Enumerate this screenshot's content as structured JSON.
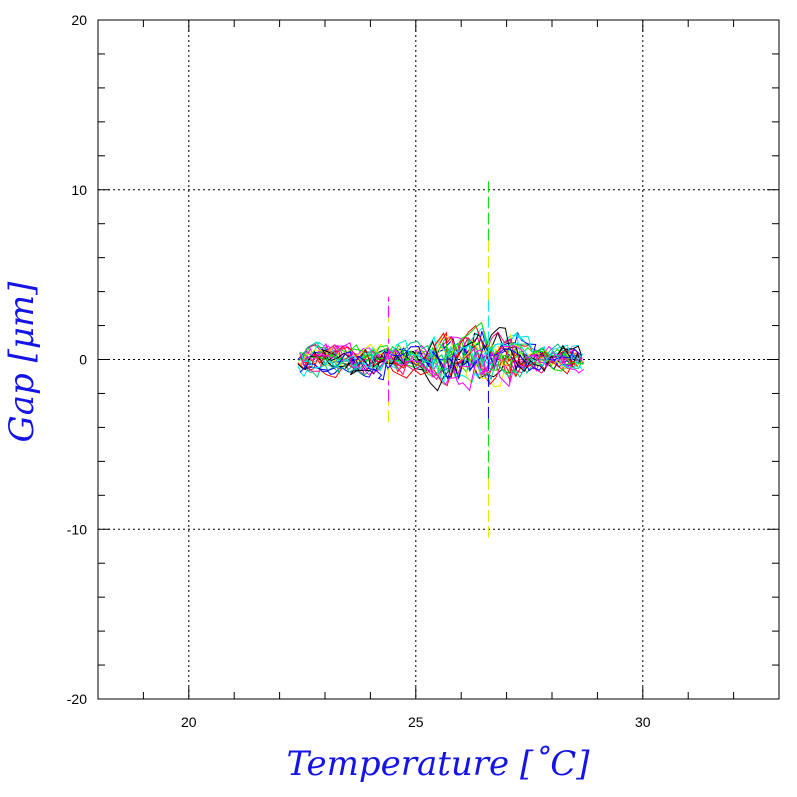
{
  "chart_data": {
    "type": "line",
    "title": "",
    "xlabel": "Temperature [˚C]",
    "ylabel": "Gap [μm]",
    "xlim": [
      18,
      33
    ],
    "ylim": [
      -20,
      20
    ],
    "x_ticks": [
      "20",
      "25",
      "30"
    ],
    "x_tick_values": [
      20,
      25,
      30
    ],
    "y_ticks": [
      "20",
      "10",
      "0",
      "-10",
      "-20"
    ],
    "y_tick_values": [
      20,
      10,
      0,
      -10,
      -20
    ],
    "grid": true,
    "legend": "none",
    "label_color": "#1414e6",
    "series_colors": [
      "#000000",
      "#ff0000",
      "#00e000",
      "#0000ff",
      "#ff00ff",
      "#00e5e5",
      "#e6e600",
      "#ff0080",
      "#00c080"
    ],
    "data_extent": {
      "x_min": 22.4,
      "x_max": 28.7,
      "typical_gap_range": [
        -2.5,
        2.5
      ],
      "spike_at_x": 26.6,
      "spike_range": [
        -10.5,
        10.5
      ],
      "minor_spike_at_x": 24.4,
      "minor_spike_range": [
        -3.7,
        3.7
      ]
    },
    "series_count": 24
  }
}
